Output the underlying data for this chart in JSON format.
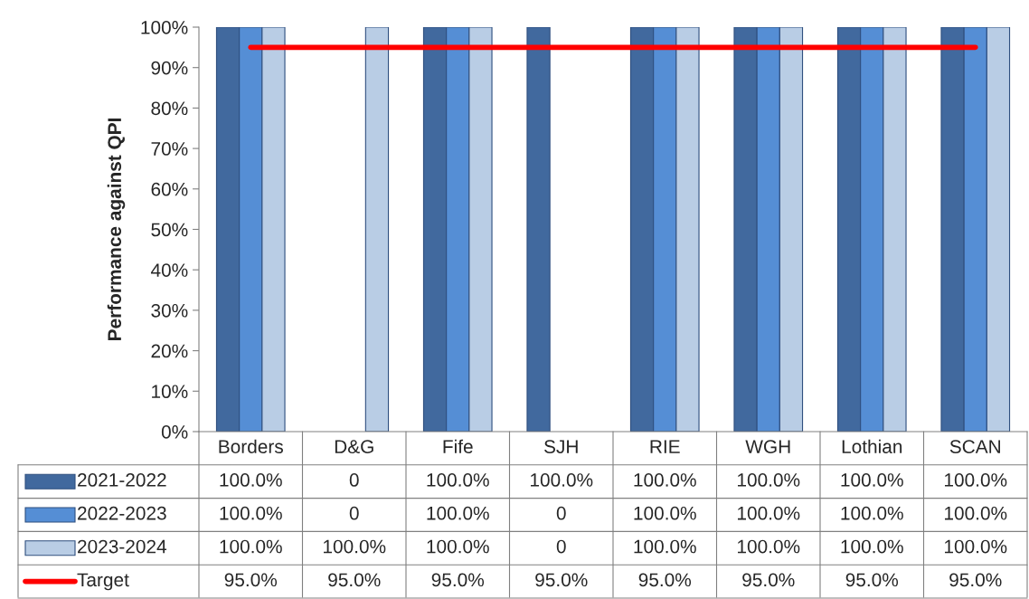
{
  "chart_data": {
    "type": "bar",
    "ylabel": "Performance against QPI",
    "categories": [
      "Borders",
      "D&G",
      "Fife",
      "SJH",
      "RIE",
      "WGH",
      "Lothian",
      "SCAN"
    ],
    "series": [
      {
        "name": "2021-2022",
        "color": "#41699e",
        "values": [
          100,
          0,
          100,
          100,
          100,
          100,
          100,
          100
        ],
        "value_labels": [
          "100.0%",
          "0",
          "100.0%",
          "100.0%",
          "100.0%",
          "100.0%",
          "100.0%",
          "100.0%"
        ]
      },
      {
        "name": "2022-2023",
        "color": "#558ed5",
        "values": [
          100,
          0,
          100,
          0,
          100,
          100,
          100,
          100
        ],
        "value_labels": [
          "100.0%",
          "0",
          "100.0%",
          "0",
          "100.0%",
          "100.0%",
          "100.0%",
          "100.0%"
        ]
      },
      {
        "name": "2023-2024",
        "color": "#b9cde5",
        "values": [
          100,
          100,
          100,
          0,
          100,
          100,
          100,
          100
        ],
        "value_labels": [
          "100.0%",
          "100.0%",
          "100.0%",
          "0",
          "100.0%",
          "100.0%",
          "100.0%",
          "100.0%"
        ]
      },
      {
        "name": "Target",
        "type": "line",
        "color": "#ff0000",
        "values": [
          95,
          95,
          95,
          95,
          95,
          95,
          95,
          95
        ],
        "value_labels": [
          "95.0%",
          "95.0%",
          "95.0%",
          "95.0%",
          "95.0%",
          "95.0%",
          "95.0%",
          "95.0%"
        ]
      }
    ],
    "ylim": [
      0,
      100
    ],
    "yticks": [
      {
        "value": 0,
        "label": "0%"
      },
      {
        "value": 10,
        "label": "10%"
      },
      {
        "value": 20,
        "label": "20%"
      },
      {
        "value": 30,
        "label": "30%"
      },
      {
        "value": 40,
        "label": "40%"
      },
      {
        "value": 50,
        "label": "50%"
      },
      {
        "value": 60,
        "label": "60%"
      },
      {
        "value": 70,
        "label": "70%"
      },
      {
        "value": 80,
        "label": "80%"
      },
      {
        "value": 90,
        "label": "90%"
      },
      {
        "value": 100,
        "label": "100%"
      }
    ],
    "grid": false,
    "legend": "bottom left",
    "marker": "none",
    "line_style": "solid"
  }
}
